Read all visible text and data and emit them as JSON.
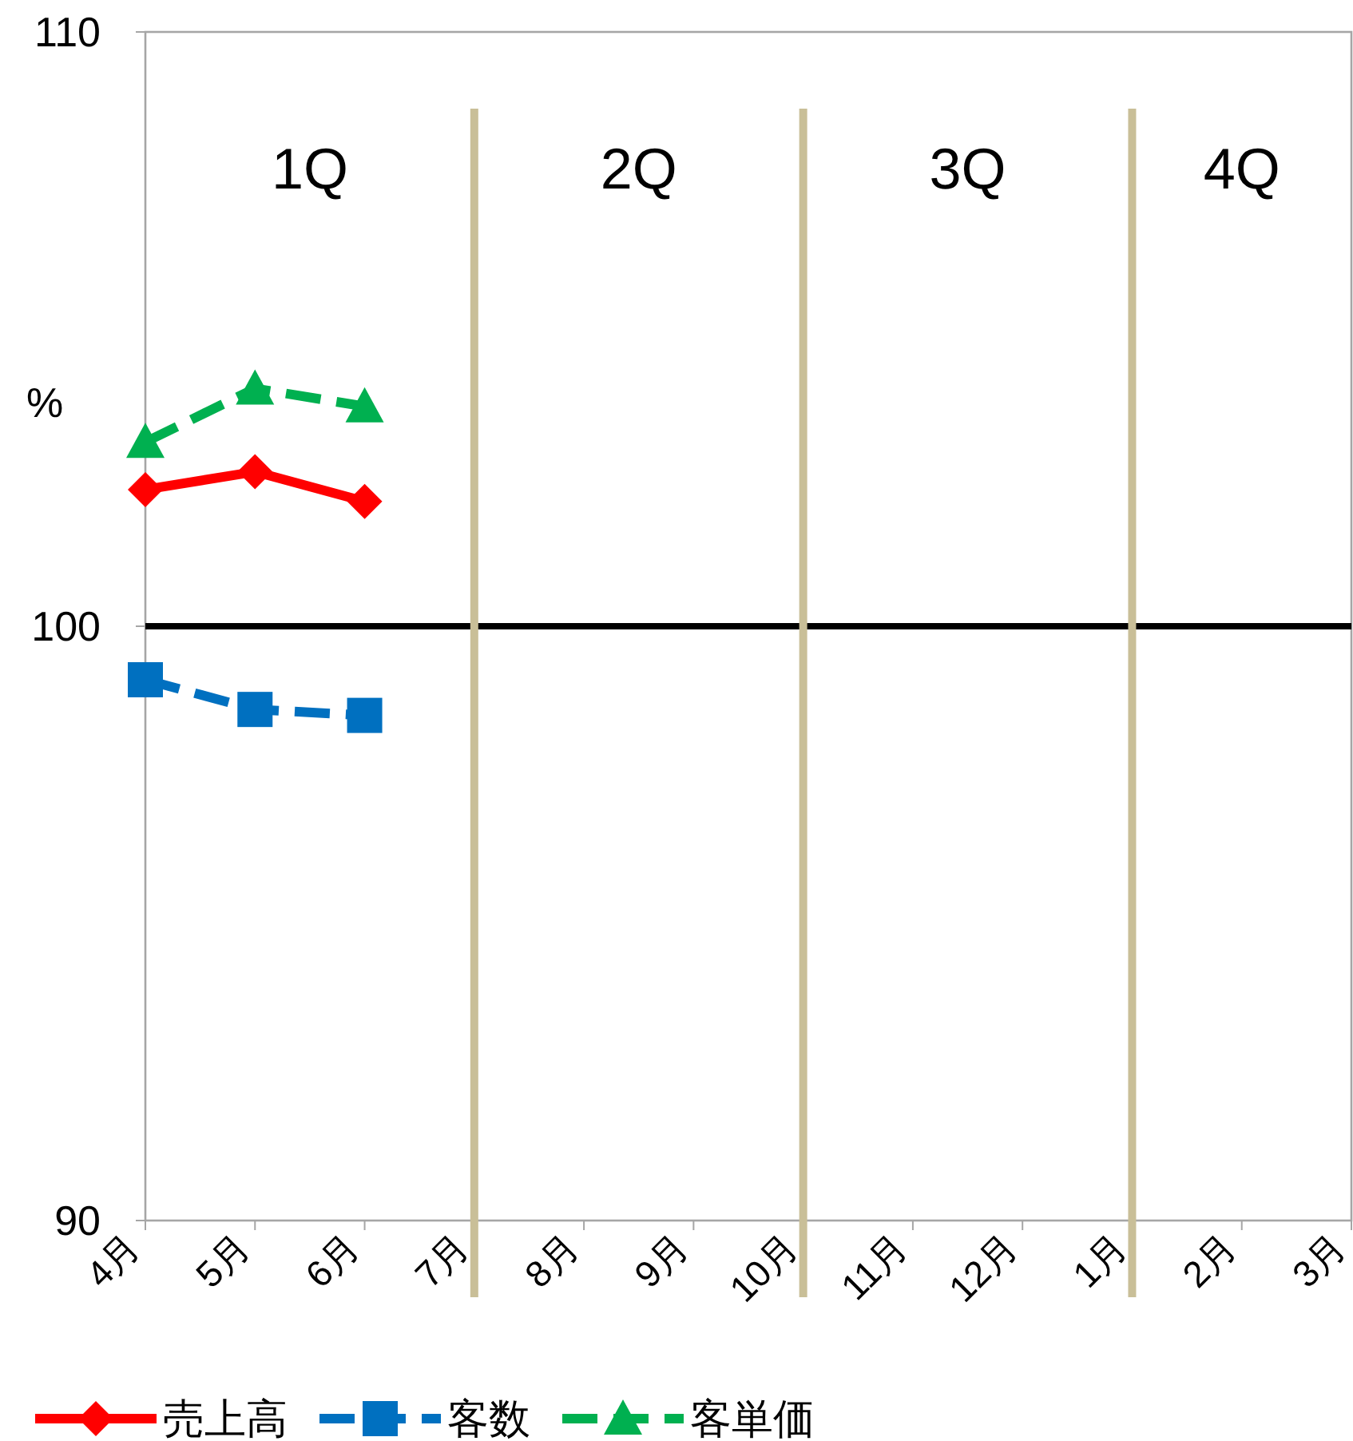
{
  "chart_data": {
    "type": "line",
    "ylabel": "%",
    "categories": [
      "4月",
      "5月",
      "6月",
      "7月",
      "8月",
      "9月",
      "10月",
      "11月",
      "12月",
      "1月",
      "2月",
      "3月"
    ],
    "series": [
      {
        "name": "売上高",
        "color": "#ff0000",
        "marker": "diamond",
        "line_style": "solid",
        "values": [
          102.3,
          102.6,
          102.1,
          null,
          null,
          null,
          null,
          null,
          null,
          null,
          null,
          null
        ]
      },
      {
        "name": "客数",
        "color": "#0070c0",
        "marker": "square",
        "line_style": "dashed",
        "values": [
          99.1,
          98.6,
          98.5,
          null,
          null,
          null,
          null,
          null,
          null,
          null,
          null,
          null
        ]
      },
      {
        "name": "客単価",
        "color": "#00b050",
        "marker": "triangle",
        "line_style": "dashed",
        "values": [
          103.1,
          104.0,
          103.7,
          null,
          null,
          null,
          null,
          null,
          null,
          null,
          null,
          null
        ]
      }
    ],
    "ylim": [
      90,
      110
    ],
    "yticks": [
      90,
      100,
      110
    ],
    "ref_lines": [
      {
        "axis": "y",
        "value": 100,
        "color": "#000000"
      },
      {
        "axis": "x",
        "value": "7月",
        "color": "#c9bf98"
      },
      {
        "axis": "x",
        "value": "10月",
        "color": "#c9bf98"
      },
      {
        "axis": "x",
        "value": "1月",
        "color": "#c9bf98"
      }
    ],
    "annotations": [
      "1Q",
      "2Q",
      "3Q",
      "4Q"
    ],
    "grid": false,
    "legend": "bottom"
  }
}
